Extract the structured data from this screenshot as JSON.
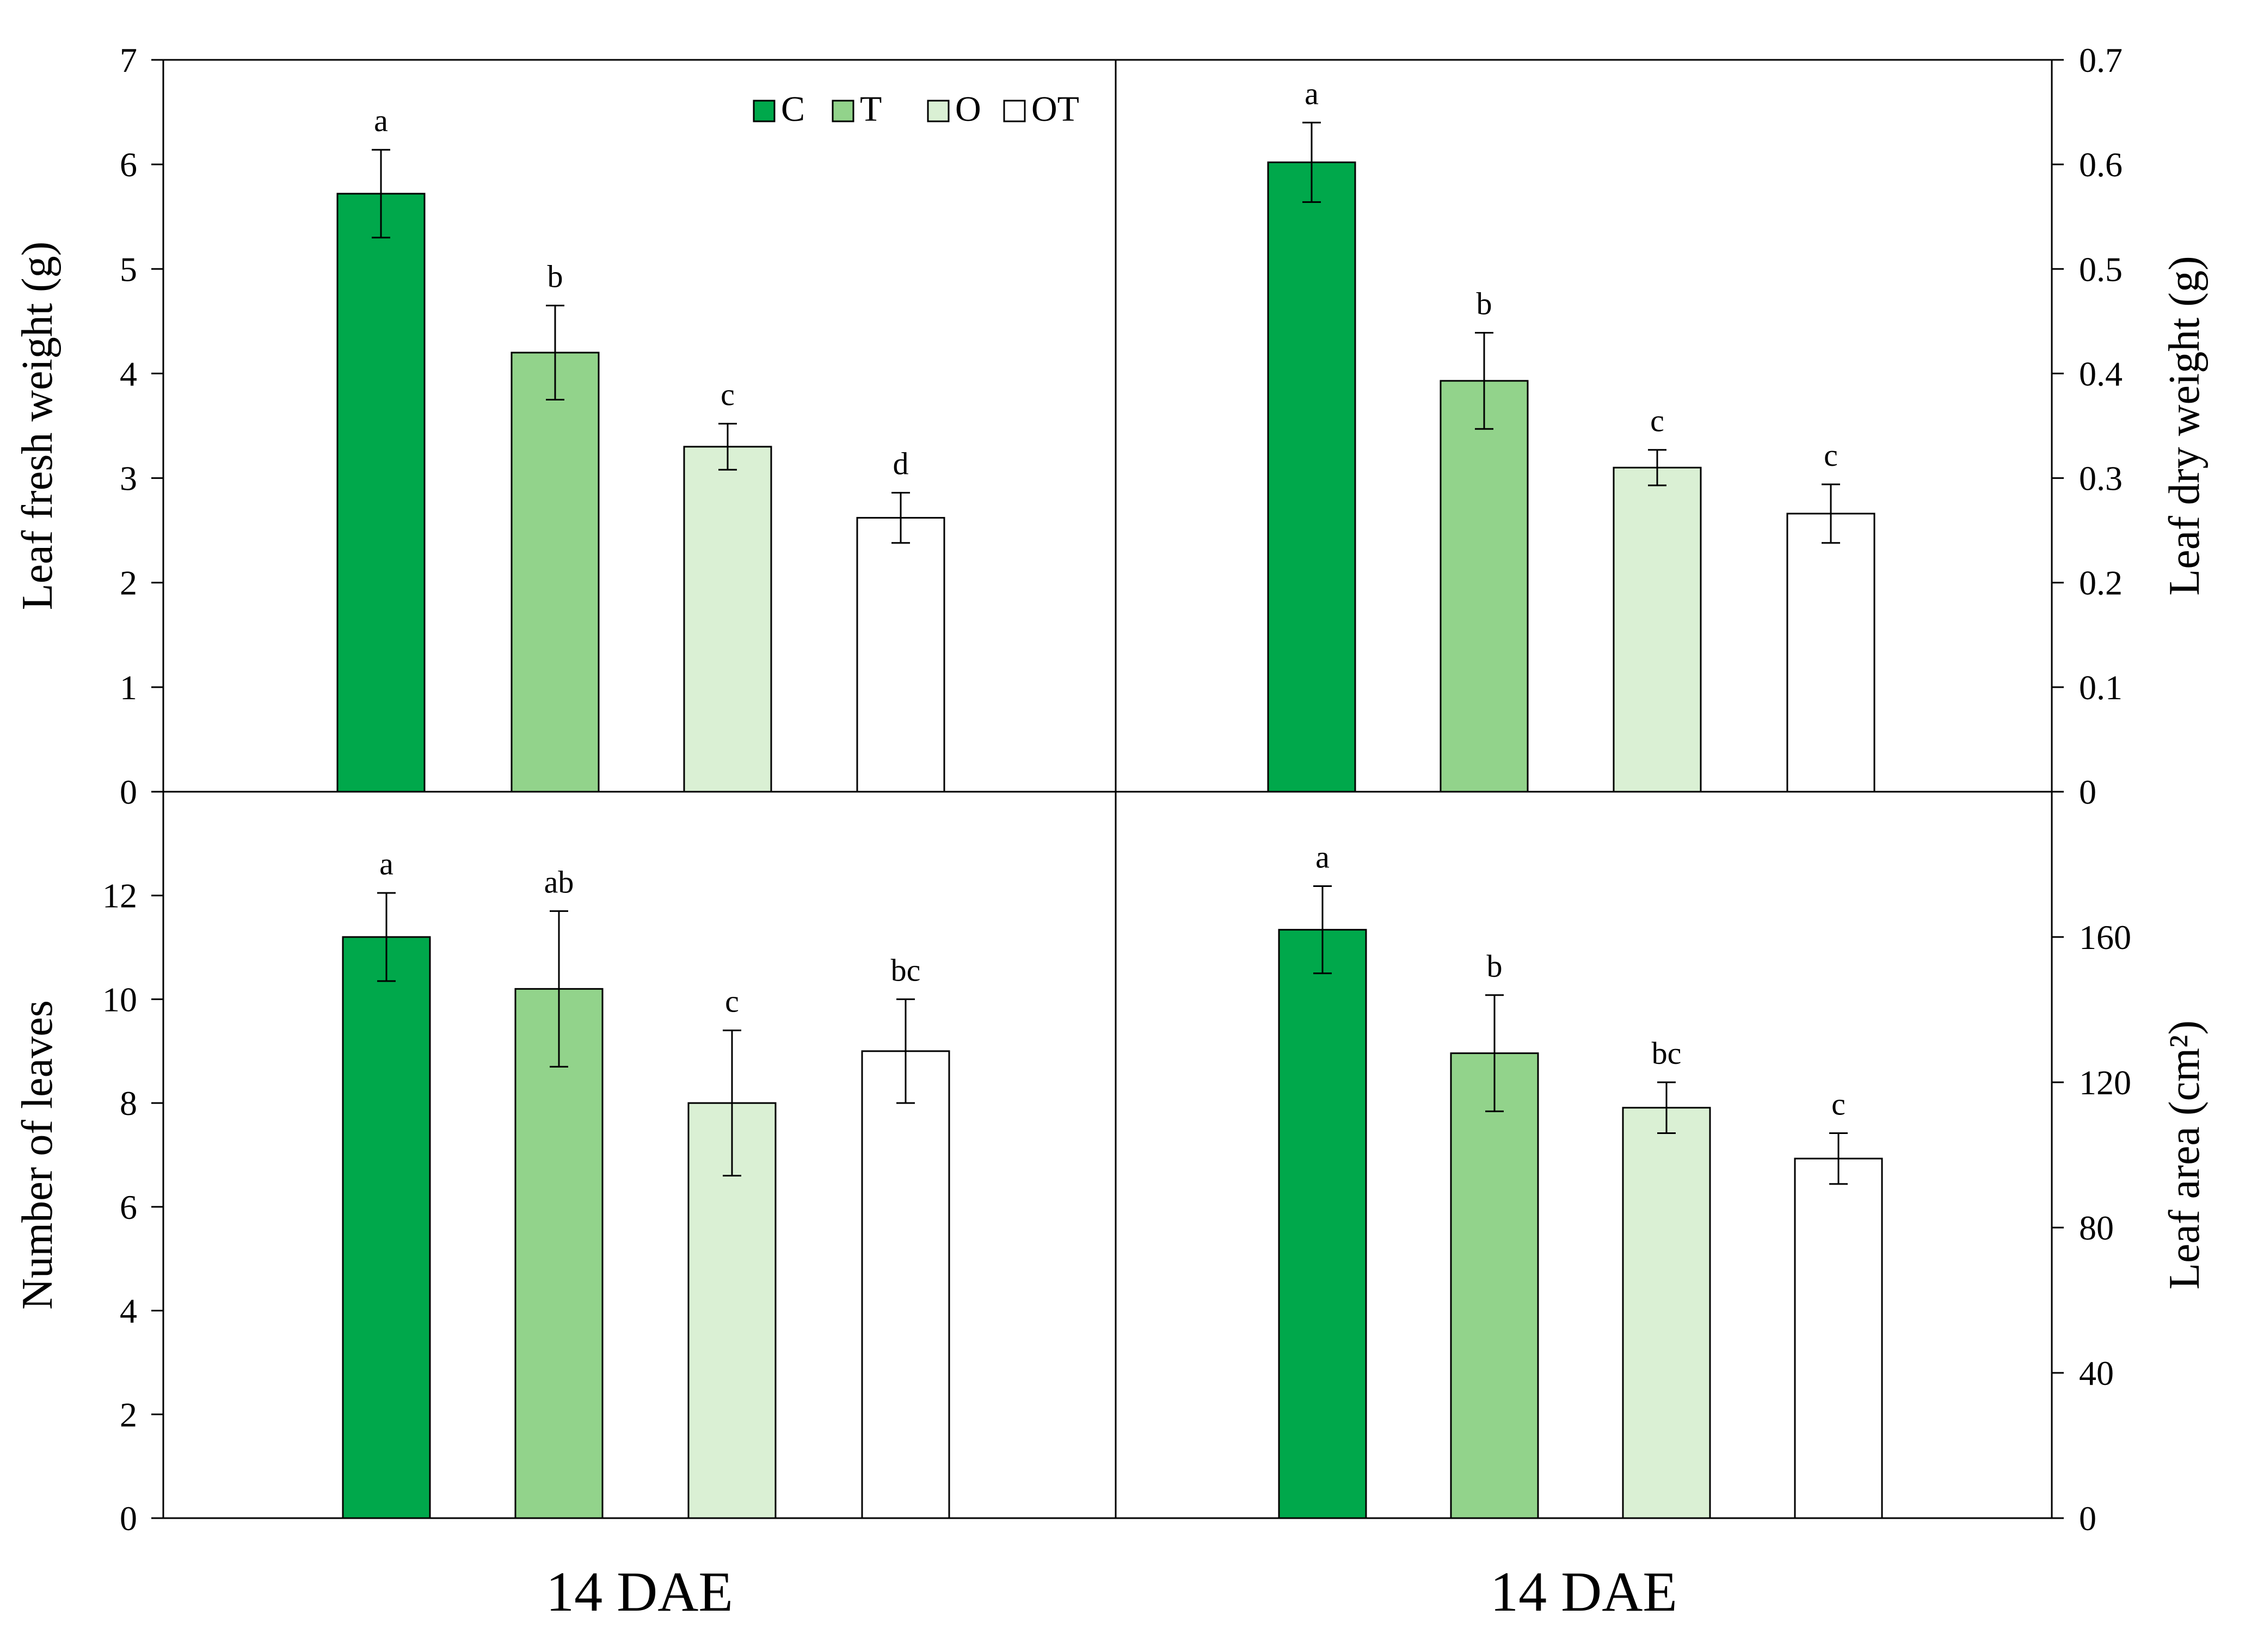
{
  "colors": {
    "C": "#00a84b",
    "T": "#92d38b",
    "O": "#daf0d4",
    "OT": "#ffffff",
    "outline": "#000000"
  },
  "legend": [
    "C",
    "T",
    "O",
    "OT"
  ],
  "chart_data": [
    {
      "type": "bar",
      "panel": "top-left",
      "title": "",
      "categories": [
        "C",
        "T",
        "O",
        "OT"
      ],
      "values": [
        5.72,
        4.2,
        3.3,
        2.62
      ],
      "errors": [
        0.42,
        0.45,
        0.22,
        0.24
      ],
      "significance": [
        "a",
        "b",
        "c",
        "d"
      ],
      "ylabel": "Leaf fresh weight (g)",
      "yaxis_side": "left",
      "ylim": [
        0,
        7
      ],
      "yticks": [
        "0",
        "1",
        "2",
        "3",
        "4",
        "5",
        "6",
        "7"
      ],
      "xlabel": "",
      "legend_position": "top-right"
    },
    {
      "type": "bar",
      "panel": "top-right",
      "title": "",
      "categories": [
        "C",
        "T",
        "O",
        "OT"
      ],
      "values": [
        0.602,
        0.393,
        0.31,
        0.266
      ],
      "errors": [
        0.038,
        0.046,
        0.017,
        0.028
      ],
      "significance": [
        "a",
        "b",
        "c",
        "c"
      ],
      "ylabel": "Leaf dry weight (g)",
      "yaxis_side": "right",
      "ylim": [
        0,
        0.7
      ],
      "yticks": [
        "0",
        "0.1",
        "0.2",
        "0.3",
        "0.4",
        "0.5",
        "0.6",
        "0.7"
      ],
      "xlabel": ""
    },
    {
      "type": "bar",
      "panel": "bottom-left",
      "title": "",
      "categories": [
        "C",
        "T",
        "O",
        "OT"
      ],
      "values": [
        11.2,
        10.2,
        8.0,
        9.0
      ],
      "errors": [
        0.85,
        1.5,
        1.4,
        1.0
      ],
      "significance": [
        "a",
        "ab",
        "c",
        "bc"
      ],
      "ylabel": "Number of leaves",
      "yaxis_side": "left",
      "ylim": [
        0,
        14
      ],
      "yticks": [
        "0",
        "2",
        "4",
        "6",
        "8",
        "10",
        "12"
      ],
      "xlabel": "14 DAE"
    },
    {
      "type": "bar",
      "panel": "bottom-right",
      "title": "",
      "categories": [
        "C",
        "T",
        "O",
        "OT"
      ],
      "values": [
        162,
        128,
        113,
        99
      ],
      "errors": [
        12,
        16,
        7,
        7
      ],
      "significance": [
        "a",
        "b",
        "bc",
        "c"
      ],
      "ylabel": "Leaf area (cm²)",
      "yaxis_side": "right",
      "ylim": [
        0,
        200
      ],
      "yticks": [
        "0",
        "40",
        "80",
        "120",
        "160"
      ],
      "xlabel": "14 DAE"
    }
  ]
}
